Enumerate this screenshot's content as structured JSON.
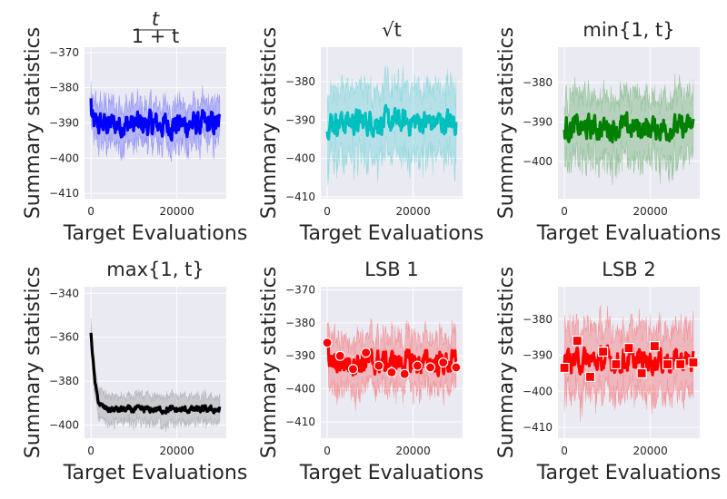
{
  "figure": {
    "xlabel": "Target Evaluations",
    "ylabel": "Summary statistics"
  },
  "chart_data": [
    {
      "type": "line",
      "id": "p1",
      "title": "t / (1 + t)",
      "title_num": "t",
      "title_den": "1 + t",
      "color": "#0000ff",
      "band_color": "#0000ff",
      "xlabel": "Target Evaluations",
      "ylabel": "Summary statistics",
      "xlim": [
        -1500,
        31500
      ],
      "ylim": [
        -411.5,
        -368.5
      ],
      "xticks": [
        0,
        20000
      ],
      "yticks": [
        -370,
        -380,
        -390,
        -400,
        -410
      ],
      "x_start": 0,
      "x_end": 30000,
      "mean": -390.5,
      "start_value": -383,
      "jitter": 2.8,
      "band": 5.5,
      "markers": null
    },
    {
      "type": "line",
      "id": "p2",
      "title": "√t",
      "color": "#00bfbf",
      "band_color": "#00bfbf",
      "xlabel": "Target Evaluations",
      "ylabel": "Summary statistics",
      "xlim": [
        -1500,
        31500
      ],
      "ylim": [
        -410.5,
        -371
      ],
      "xticks": [
        0,
        20000
      ],
      "yticks": [
        -380,
        -390,
        -400,
        -410
      ],
      "x_start": 0,
      "x_end": 30000,
      "mean": -390.5,
      "start_value": -393,
      "jitter": 2.5,
      "band": 9,
      "markers": null
    },
    {
      "type": "line",
      "id": "p3",
      "title": "min{1, t}",
      "color": "#008000",
      "band_color": "#008000",
      "xlabel": "Target Evaluations",
      "ylabel": "Summary statistics",
      "xlim": [
        -1500,
        31500
      ],
      "ylim": [
        -409.5,
        -371
      ],
      "xticks": [
        0,
        20000
      ],
      "yticks": [
        -380,
        -390,
        -400
      ],
      "x_start": 0,
      "x_end": 30000,
      "mean": -391.5,
      "start_value": -392,
      "jitter": 2.4,
      "band": 8,
      "markers": null
    },
    {
      "type": "line",
      "id": "p4",
      "title": "max{1, t}",
      "color": "#000000",
      "band_color": "#555555",
      "xlabel": "Target Evaluations",
      "ylabel": "Summary statistics",
      "xlim": [
        -1500,
        31500
      ],
      "ylim": [
        -406,
        -337
      ],
      "xticks": [
        0,
        20000
      ],
      "yticks": [
        -340,
        -360,
        -380,
        -400
      ],
      "x_start": 0,
      "x_end": 30000,
      "decay_start": -358,
      "decay_end": -393,
      "decay_rate": 0.00045,
      "jitter": 1.2,
      "band": 6,
      "markers": null
    },
    {
      "type": "line",
      "id": "p5",
      "title": "LSB 1",
      "color": "#ff0000",
      "band_color": "#ff0000",
      "xlabel": "Target Evaluations",
      "ylabel": "Summary statistics",
      "xlim": [
        -1500,
        31500
      ],
      "ylim": [
        -415,
        -369
      ],
      "xticks": [
        0,
        20000
      ],
      "yticks": [
        -370,
        -380,
        -390,
        -400,
        -410
      ],
      "x_start": 0,
      "x_end": 30000,
      "mean": -392,
      "start_value": -386,
      "jitter": 2.8,
      "band": 7.5,
      "markers": {
        "shape": "circle",
        "points": [
          [
            0,
            -386
          ],
          [
            3000,
            -390
          ],
          [
            6000,
            -394
          ],
          [
            9000,
            -389
          ],
          [
            12000,
            -393
          ],
          [
            15000,
            -395
          ],
          [
            18000,
            -395.5
          ],
          [
            21000,
            -393
          ],
          [
            24000,
            -393.5
          ],
          [
            27000,
            -392
          ],
          [
            30000,
            -393.5
          ]
        ]
      }
    },
    {
      "type": "line",
      "id": "p6",
      "title": "LSB 2",
      "color": "#ff0000",
      "band_color": "#ff0000",
      "xlabel": "Target Evaluations",
      "ylabel": "Summary statistics",
      "xlim": [
        -1500,
        31500
      ],
      "ylim": [
        -413,
        -371
      ],
      "xticks": [
        0,
        20000
      ],
      "yticks": [
        -380,
        -390,
        -400,
        -410
      ],
      "x_start": 0,
      "x_end": 30000,
      "mean": -391.5,
      "start_value": -393,
      "jitter": 2.5,
      "band": 9,
      "markers": {
        "shape": "square",
        "points": [
          [
            0,
            -393.5
          ],
          [
            3000,
            -386
          ],
          [
            6000,
            -396
          ],
          [
            9000,
            -389
          ],
          [
            12000,
            -392.5
          ],
          [
            15000,
            -388
          ],
          [
            18000,
            -395
          ],
          [
            21000,
            -387.5
          ],
          [
            24000,
            -392.5
          ],
          [
            27000,
            -392.5
          ],
          [
            30000,
            -392
          ]
        ]
      }
    }
  ]
}
